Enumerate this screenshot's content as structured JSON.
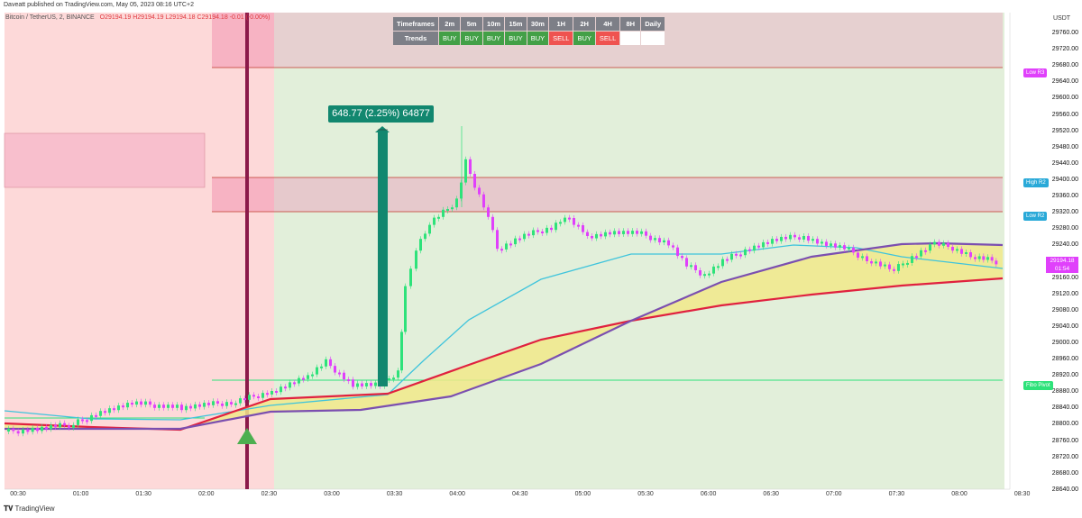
{
  "header": {
    "published": "Daveatt published on TradingView.com, May 05, 2023 08:16 UTC+2"
  },
  "symbol": {
    "name": "Bitcoin / TetherUS, 2, BINANCE",
    "ohlc": "O29194.19 H29194.19 L29194.18 C29194.18 -0.01 (-0.00%)"
  },
  "table": {
    "header_label": "Timeframes",
    "row_label": "Trends",
    "timeframes": [
      "2m",
      "5m",
      "10m",
      "15m",
      "30m",
      "1H",
      "2H",
      "4H",
      "8H",
      "Daily"
    ],
    "trends": [
      "BUY",
      "BUY",
      "BUY",
      "BUY",
      "BUY",
      "SELL",
      "BUY",
      "SELL",
      "",
      ""
    ]
  },
  "measure_label": "648.77 (2.25%) 64877",
  "axis": {
    "unit": "USDT",
    "price_ticks": [
      "29760.00",
      "29720.00",
      "29680.00",
      "29640.00",
      "29600.00",
      "29560.00",
      "29520.00",
      "29480.00",
      "29440.00",
      "29400.00",
      "29360.00",
      "29320.00",
      "29280.00",
      "29240.00",
      "29200.00",
      "29160.00",
      "29120.00",
      "29080.00",
      "29040.00",
      "29000.00",
      "28960.00",
      "28920.00",
      "28880.00",
      "28840.00",
      "28800.00",
      "28760.00",
      "28720.00",
      "28680.00",
      "28640.00"
    ],
    "time_ticks": [
      "00:30",
      "01:00",
      "01:30",
      "02:00",
      "02:30",
      "03:00",
      "03:30",
      "04:00",
      "04:30",
      "05:00",
      "05:30",
      "06:00",
      "06:30",
      "07:00",
      "07:30",
      "08:00",
      "08:30"
    ]
  },
  "pivot_labels": {
    "low_r3": "Low R3",
    "high_r2": "High R2",
    "low_r2": "Low R2",
    "fibo_pivot": "Fibo Pivot"
  },
  "current_price": {
    "price": "29194.18",
    "countdown": "01:54"
  },
  "colors": {
    "sell_zone": "#fdd9d9",
    "buy_zone": "#e2efda",
    "upper_box": "#e8d4d4",
    "pink_box": "#f8bfcd",
    "signal_bar": "#8b1a4a",
    "ema_red": "#e0213f",
    "ema_purple": "#7b4fb0",
    "ema_blue": "#3fc4dc",
    "cloud": "#f1e98a",
    "bull": "#2ee27a",
    "bear": "#e040fb",
    "pivot_green": "#2ee27a",
    "measure": "#12876f"
  },
  "footer": {
    "brand": "TradingView"
  }
}
